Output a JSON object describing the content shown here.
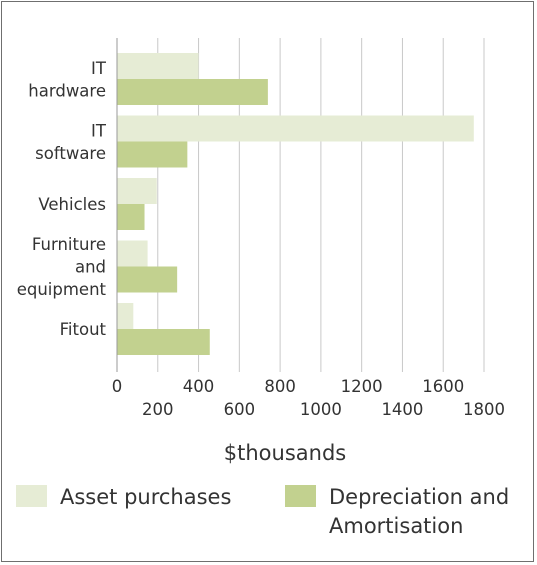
{
  "chart_data": {
    "type": "bar",
    "orientation": "horizontal",
    "categories": [
      "IT\nhardware",
      "IT\nsoftware",
      "Vehicles",
      "Furniture\nand\nequipment",
      "Fitout"
    ],
    "series": [
      {
        "name": "Asset purchases",
        "color": "#e6ecd5",
        "values": [
          400,
          1750,
          195,
          150,
          80
        ]
      },
      {
        "name": "Depreciation and\nAmortisation",
        "color": "#c2d18f",
        "values": [
          740,
          345,
          135,
          295,
          455
        ]
      }
    ],
    "xticks": [
      0,
      200,
      400,
      600,
      800,
      1000,
      1200,
      1400,
      1600,
      1800
    ],
    "xlim": [
      0,
      1800
    ],
    "xlabel": "$thousands",
    "ylabel": "",
    "title": "",
    "grid": true,
    "legend_position": "bottom"
  }
}
